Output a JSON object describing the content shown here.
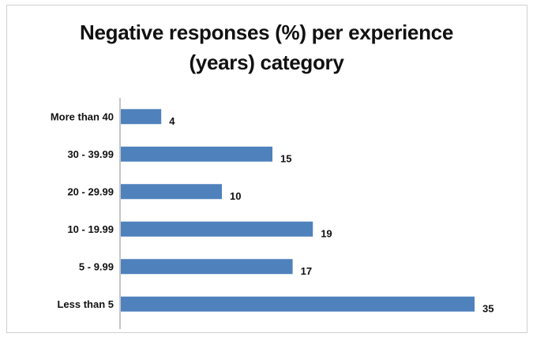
{
  "chart_data": {
    "type": "bar",
    "orientation": "horizontal",
    "title": "Negative responses (%) per experience (years) category",
    "title_lines": [
      "Negative responses (%) per experience",
      "(years) category"
    ],
    "categories": [
      "More than 40",
      "30 - 39.99",
      "20 - 29.99",
      "10 - 19.99",
      "5 - 9.99",
      "Less than 5"
    ],
    "values": [
      4,
      15,
      10,
      19,
      17,
      35
    ],
    "xlim": [
      0,
      35
    ],
    "bar_color": "#4f81bd",
    "grid": false,
    "legend": "none",
    "data_labels": true
  }
}
